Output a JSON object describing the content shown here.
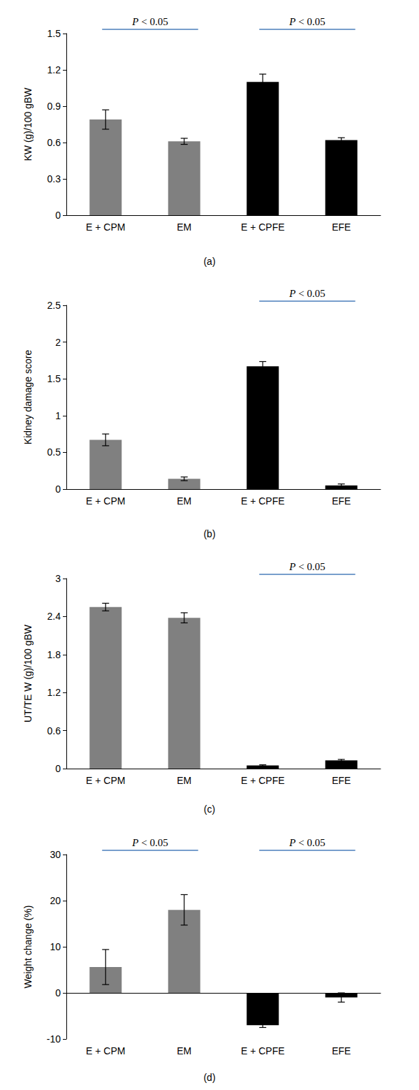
{
  "chart_data": [
    {
      "type": "bar",
      "caption": "(a)",
      "ylabel": "KW (g)/100 gBW",
      "categories": [
        "E + CPM",
        "EM",
        "E + CPFE",
        "EFE"
      ],
      "values": [
        0.79,
        0.61,
        1.1,
        0.62
      ],
      "errors": [
        0.08,
        0.025,
        0.065,
        0.02
      ],
      "colors": [
        "#808080",
        "#808080",
        "#000000",
        "#000000"
      ],
      "ylim": [
        0,
        1.5
      ],
      "yticks": [
        0,
        0.3,
        0.6,
        0.9,
        1.2,
        1.5
      ],
      "grid": false,
      "annotations": [
        {
          "text": "P < 0.05",
          "from": "E + CPM",
          "to": "EM"
        },
        {
          "text": "P < 0.05",
          "from": "E + CPFE",
          "to": "EFE"
        }
      ]
    },
    {
      "type": "bar",
      "caption": "(b)",
      "ylabel": "Kidney damage score",
      "categories": [
        "E + CPM",
        "EM",
        "E + CPFE",
        "EFE"
      ],
      "values": [
        0.67,
        0.14,
        1.67,
        0.05
      ],
      "errors": [
        0.08,
        0.025,
        0.065,
        0.02
      ],
      "colors": [
        "#808080",
        "#808080",
        "#000000",
        "#000000"
      ],
      "ylim": [
        0,
        2.5
      ],
      "yticks": [
        0,
        0.5,
        1,
        1.5,
        2,
        2.5
      ],
      "grid": false,
      "annotations": [
        {
          "text": "P < 0.05",
          "from": "E + CPFE",
          "to": "EFE"
        }
      ]
    },
    {
      "type": "bar",
      "caption": "(c)",
      "ylabel": "UT/TE W (g)/100 gBW",
      "categories": [
        "E + CPM",
        "EM",
        "E + CPFE",
        "EFE"
      ],
      "values": [
        2.55,
        2.38,
        0.05,
        0.13
      ],
      "errors": [
        0.06,
        0.08,
        0.01,
        0.015
      ],
      "colors": [
        "#808080",
        "#808080",
        "#000000",
        "#000000"
      ],
      "ylim": [
        0,
        3
      ],
      "yticks": [
        0,
        0.6,
        1.2,
        1.8,
        2.4,
        3
      ],
      "grid": false,
      "annotations": [
        {
          "text": "P < 0.05",
          "from": "E + CPFE",
          "to": "EFE"
        }
      ]
    },
    {
      "type": "bar",
      "caption": "(d)",
      "ylabel": "Weight change (%)",
      "categories": [
        "E + CPM",
        "EM",
        "E + CPFE",
        "EFE"
      ],
      "values": [
        5.6,
        18.0,
        -7.0,
        -1.0
      ],
      "errors": [
        3.8,
        3.3,
        0.5,
        1.0
      ],
      "colors": [
        "#808080",
        "#808080",
        "#000000",
        "#000000"
      ],
      "ylim": [
        -10,
        30
      ],
      "yticks": [
        -10,
        0,
        10,
        20,
        30
      ],
      "grid": false,
      "annotations": [
        {
          "text": "P < 0.05",
          "from": "E + CPM",
          "to": "EM"
        },
        {
          "text": "P < 0.05",
          "from": "E + CPFE",
          "to": "EFE"
        }
      ]
    }
  ]
}
